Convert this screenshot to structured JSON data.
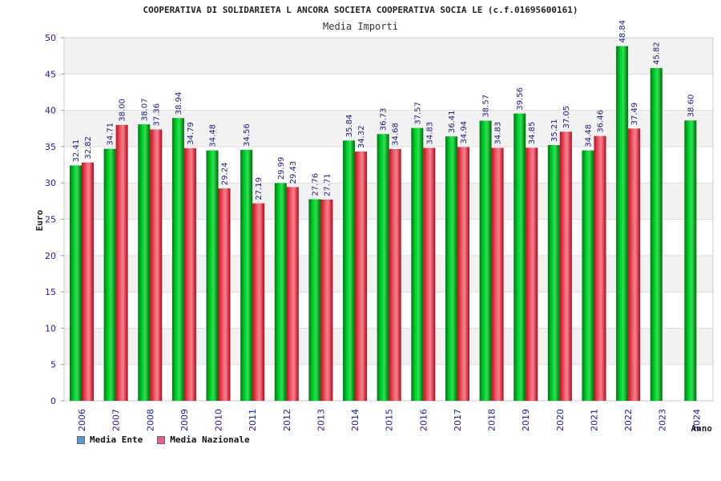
{
  "chart_data": {
    "type": "bar",
    "title": "COOPERATIVA DI SOLIDARIETA L ANCORA SOCIETA COOPERATIVA SOCIA LE (c.f.01695600161)",
    "subtitle": "Media Importi",
    "xlabel": "Anno",
    "ylabel": "Euro",
    "ylim": [
      0,
      50
    ],
    "yticks": [
      0,
      5,
      10,
      15,
      20,
      25,
      30,
      35,
      40,
      45,
      50
    ],
    "categories": [
      "2006",
      "2007",
      "2008",
      "2009",
      "2010",
      "2011",
      "2012",
      "2013",
      "2014",
      "2015",
      "2016",
      "2017",
      "2018",
      "2019",
      "2020",
      "2021",
      "2022",
      "2023",
      "2024"
    ],
    "series": [
      {
        "name": "Media Ente",
        "color": "#00b020",
        "values": [
          32.41,
          34.71,
          38.07,
          38.94,
          34.48,
          34.56,
          29.99,
          27.76,
          35.84,
          36.73,
          37.57,
          36.41,
          38.57,
          39.56,
          35.21,
          34.48,
          48.84,
          45.82,
          38.6
        ],
        "labels": [
          "32.41",
          "34.71",
          "38.07",
          "38.94",
          "34.48",
          "34.56",
          "29.99",
          "27.76",
          "35.84",
          "36.73",
          "37.57",
          "36.41",
          "38.57",
          "39.56",
          "35.21",
          "34.48",
          "48.84",
          "45.82",
          "38.60"
        ]
      },
      {
        "name": "Media Nazionale",
        "color": "#e83040",
        "values": [
          32.82,
          38.0,
          37.36,
          34.79,
          29.24,
          27.19,
          29.43,
          27.71,
          34.32,
          34.68,
          34.83,
          34.94,
          34.83,
          34.85,
          37.05,
          36.46,
          37.49,
          null,
          null
        ],
        "labels": [
          "32.82",
          "38.00",
          "37.36",
          "34.79",
          "29.24",
          "27.19",
          "29.43",
          "27.71",
          "34.32",
          "34.68",
          "34.83",
          "34.94",
          "34.83",
          "34.85",
          "37.05",
          "36.46",
          "37.49",
          null,
          null
        ]
      }
    ],
    "legend": {
      "position": "bottom-left",
      "items": [
        {
          "label": "Media Ente",
          "color": "#5b9bd5"
        },
        {
          "label": "Media Nazionale",
          "color": "#e06090"
        }
      ]
    }
  }
}
